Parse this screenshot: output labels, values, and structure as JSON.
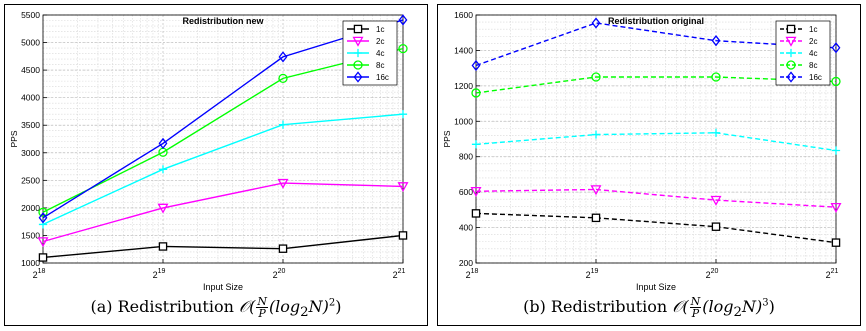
{
  "chart_data": [
    {
      "type": "line",
      "title": "Redistribution new",
      "xlabel": "Input Size",
      "ylabel": "PPS",
      "x_ticks": [
        "2^18",
        "2^19",
        "2^20",
        "2^21"
      ],
      "x": [
        18,
        19,
        20,
        21
      ],
      "ylim": [
        1000,
        5500
      ],
      "yticks": [
        1000,
        1500,
        2000,
        2500,
        3000,
        3500,
        4000,
        4500,
        5000,
        5500
      ],
      "grid": true,
      "line_style": "solid",
      "legend_position": "top-right",
      "series": [
        {
          "name": "1c",
          "color": "#000000",
          "marker": "square",
          "values": [
            1100,
            1300,
            1260,
            1500
          ]
        },
        {
          "name": "2c",
          "color": "#ff00ff",
          "marker": "triangle-down",
          "values": [
            1390,
            2000,
            2450,
            2390
          ]
        },
        {
          "name": "4c",
          "color": "#00ffff",
          "marker": "plus",
          "values": [
            1700,
            2700,
            3510,
            3700
          ]
        },
        {
          "name": "8c",
          "color": "#00ff00",
          "marker": "circle",
          "values": [
            1920,
            3010,
            4350,
            4890
          ]
        },
        {
          "name": "16c",
          "color": "#0000ff",
          "marker": "diamond",
          "values": [
            1820,
            3170,
            4740,
            5410
          ]
        }
      ],
      "caption": {
        "prefix": "(a) Redistribution ",
        "num": "N",
        "den": "P",
        "log": "(log",
        "sub": "2",
        "tail": "N)",
        "power": "2",
        "close": ")"
      }
    },
    {
      "type": "line",
      "title": "Redistribution original",
      "xlabel": "Input Size",
      "ylabel": "PPS",
      "x_ticks": [
        "2^18",
        "2^19",
        "2^20",
        "2^21"
      ],
      "x": [
        18,
        19,
        20,
        21
      ],
      "ylim": [
        200,
        1600
      ],
      "yticks": [
        200,
        400,
        600,
        800,
        1000,
        1200,
        1400,
        1600
      ],
      "grid": true,
      "line_style": "dashed",
      "legend_position": "top-right",
      "series": [
        {
          "name": "1c",
          "color": "#000000",
          "marker": "square",
          "values": [
            480,
            455,
            405,
            315
          ]
        },
        {
          "name": "2c",
          "color": "#ff00ff",
          "marker": "triangle-down",
          "values": [
            605,
            615,
            555,
            515
          ]
        },
        {
          "name": "4c",
          "color": "#00ffff",
          "marker": "plus",
          "values": [
            870,
            925,
            935,
            835
          ]
        },
        {
          "name": "8c",
          "color": "#00ff00",
          "marker": "circle",
          "values": [
            1160,
            1250,
            1250,
            1225
          ]
        },
        {
          "name": "16c",
          "color": "#0000ff",
          "marker": "diamond",
          "values": [
            1315,
            1555,
            1455,
            1415
          ]
        }
      ],
      "caption": {
        "prefix": "(b) Redistribution ",
        "num": "N",
        "den": "P",
        "log": "(log",
        "sub": "2",
        "tail": "N)",
        "power": "3",
        "close": ")"
      }
    }
  ]
}
